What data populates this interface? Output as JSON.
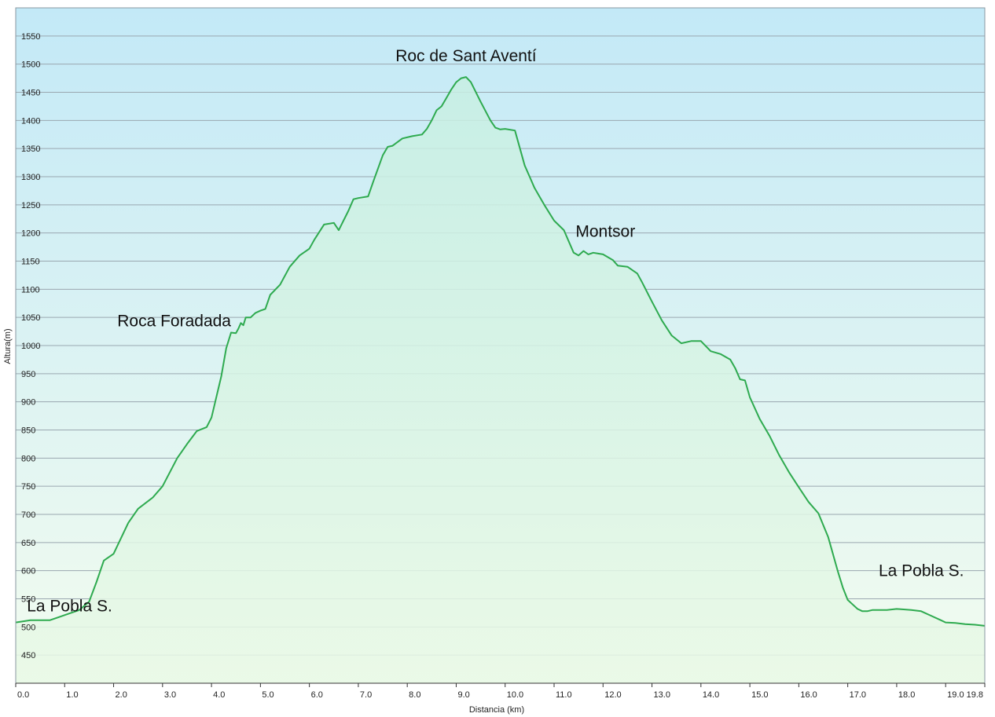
{
  "chart_data": {
    "type": "area",
    "title": "",
    "xlabel": "Distancia  (km)",
    "ylabel": "Altura(m)",
    "xlim": [
      0,
      19.8
    ],
    "ylim": [
      400,
      1600
    ],
    "x_ticks": [
      "0.0",
      "1.0",
      "2.0",
      "3.0",
      "4.0",
      "5.0",
      "6.0",
      "7.0",
      "8.0",
      "9.0",
      "10.0",
      "11.0",
      "12.0",
      "13.0",
      "14.0",
      "15.0",
      "16.0",
      "17.0",
      "18.0",
      "19.0",
      "19.8"
    ],
    "y_ticks": [
      450,
      500,
      550,
      600,
      650,
      700,
      750,
      800,
      850,
      900,
      950,
      1000,
      1050,
      1100,
      1150,
      1200,
      1250,
      1300,
      1350,
      1400,
      1450,
      1500,
      1550
    ],
    "grid": true,
    "line_color": "#2eaa4f",
    "fill_top_color": "#c6ecf6",
    "fill_bottom_color": "#effbec",
    "series": [
      {
        "x": [
          0.0,
          0.3,
          0.7,
          0.9,
          1.1,
          1.3,
          1.5,
          1.65,
          1.8,
          2.0,
          2.3,
          2.5,
          2.8,
          3.0,
          3.3,
          3.5,
          3.7,
          3.9,
          4.0,
          4.2,
          4.3,
          4.4,
          4.5,
          4.55,
          4.6,
          4.65,
          4.7,
          4.8,
          4.9,
          5.0,
          5.1,
          5.2,
          5.4,
          5.6,
          5.8,
          6.0,
          6.1,
          6.3,
          6.5,
          6.6,
          6.8,
          6.9,
          7.0,
          7.2,
          7.3,
          7.5,
          7.6,
          7.7,
          7.9,
          8.1,
          8.3,
          8.4,
          8.5,
          8.6,
          8.7,
          8.8,
          8.9,
          9.0,
          9.1,
          9.2,
          9.3,
          9.5,
          9.7,
          9.8,
          9.9,
          10.0,
          10.2,
          10.4,
          10.5,
          10.6,
          10.8,
          11.0,
          11.2,
          11.4,
          11.5,
          11.6,
          11.7,
          11.8,
          12.0,
          12.2,
          12.3,
          12.5,
          12.7,
          12.8,
          13.0,
          13.2,
          13.4,
          13.6,
          13.8,
          14.0,
          14.2,
          14.4,
          14.6,
          14.7,
          14.8,
          14.9,
          15.0,
          15.2,
          15.4,
          15.6,
          15.8,
          16.0,
          16.2,
          16.4,
          16.6,
          16.8,
          16.9,
          17.0,
          17.1,
          17.2,
          17.3,
          17.4,
          17.5,
          17.8,
          18.0,
          18.3,
          18.5,
          18.7,
          18.9,
          19.0,
          19.2,
          19.4,
          19.6,
          19.8
        ],
        "y": [
          508,
          512,
          512,
          518,
          524,
          530,
          545,
          580,
          618,
          630,
          685,
          710,
          730,
          750,
          800,
          825,
          848,
          855,
          872,
          945,
          995,
          1023,
          1022,
          1030,
          1040,
          1036,
          1050,
          1050,
          1058,
          1062,
          1065,
          1090,
          1108,
          1140,
          1160,
          1172,
          1188,
          1215,
          1218,
          1205,
          1240,
          1260,
          1262,
          1265,
          1290,
          1338,
          1353,
          1355,
          1368,
          1372,
          1375,
          1385,
          1400,
          1418,
          1425,
          1440,
          1455,
          1468,
          1475,
          1477,
          1468,
          1433,
          1400,
          1387,
          1384,
          1385,
          1382,
          1320,
          1300,
          1280,
          1250,
          1222,
          1205,
          1165,
          1160,
          1168,
          1162,
          1165,
          1162,
          1152,
          1142,
          1140,
          1128,
          1112,
          1078,
          1045,
          1018,
          1004,
          1008,
          1008,
          990,
          985,
          975,
          960,
          940,
          938,
          908,
          870,
          840,
          805,
          775,
          748,
          722,
          702,
          660,
          598,
          570,
          548,
          540,
          532,
          528,
          528,
          530,
          530,
          532,
          530,
          528,
          520,
          512,
          508,
          507,
          505,
          504,
          502
        ]
      }
    ],
    "annotations": [
      {
        "label": "Roc de Sant Aventí",
        "x": 9.2,
        "y": 1477
      },
      {
        "label": "Roca Foradada",
        "x": 4.4,
        "y": 1023
      },
      {
        "label": "Montsor",
        "x": 11.6,
        "y": 1160
      },
      {
        "label": "La Pobla S.",
        "x": 0.1,
        "y": 508
      },
      {
        "label": "La Pobla S.",
        "x": 19.6,
        "y": 504
      }
    ]
  }
}
